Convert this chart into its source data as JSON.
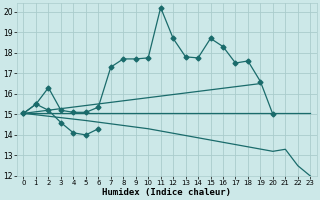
{
  "xlabel": "Humidex (Indice chaleur)",
  "xlim": [
    -0.5,
    23.5
  ],
  "ylim": [
    12,
    20.4
  ],
  "yticks": [
    12,
    13,
    14,
    15,
    16,
    17,
    18,
    19,
    20
  ],
  "xticks": [
    0,
    1,
    2,
    3,
    4,
    5,
    6,
    7,
    8,
    9,
    10,
    11,
    12,
    13,
    14,
    15,
    16,
    17,
    18,
    19,
    20,
    21,
    22,
    23
  ],
  "bg_color": "#cce8e8",
  "line_color": "#1a6b6b",
  "grid_color": "#aacccc",
  "line1": {
    "x": [
      0,
      1,
      2,
      3,
      4,
      5,
      6,
      7,
      8,
      9,
      10,
      11,
      12,
      13,
      14,
      15,
      16,
      17,
      18,
      19,
      20
    ],
    "y": [
      15.05,
      15.5,
      16.3,
      15.2,
      15.1,
      15.1,
      15.35,
      17.3,
      17.7,
      17.7,
      17.75,
      20.2,
      18.7,
      17.8,
      17.75,
      18.7,
      18.3,
      17.5,
      17.6,
      16.6,
      15.0
    ]
  },
  "line2": {
    "x": [
      0,
      1,
      2,
      3,
      4,
      5,
      6
    ],
    "y": [
      15.05,
      15.5,
      15.2,
      14.6,
      14.1,
      14.0,
      14.3
    ]
  },
  "line3": {
    "x": [
      0,
      23
    ],
    "y": [
      15.05,
      15.05
    ]
  },
  "line4": {
    "x": [
      0,
      5,
      10,
      20,
      21,
      22,
      23
    ],
    "y": [
      15.05,
      14.7,
      14.3,
      13.2,
      13.3,
      12.5,
      12.0
    ]
  },
  "line5": {
    "x": [
      0,
      19
    ],
    "y": [
      15.05,
      16.5
    ]
  }
}
